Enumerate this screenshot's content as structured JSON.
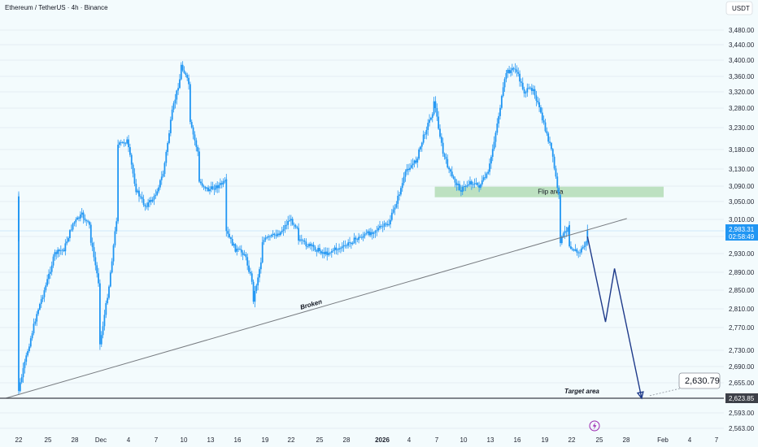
{
  "header": {
    "title": "Ethereum / TetherUS · 4h · Binance",
    "currency": "USDT"
  },
  "colors": {
    "background": "#f3fbfd",
    "candle": "#2196f3",
    "trendline": "#777b80",
    "support": "#3d4048",
    "projection": "#1e3a8a",
    "flip_zone": "#a5d6a7",
    "price_tag": "#2196f3",
    "support_tag": "#3d4048"
  },
  "chart_data": {
    "type": "candlestick",
    "title": "Ethereum / TetherUS · 4h · Binance",
    "ylim": [
      2563,
      3520
    ],
    "y_ticks": [
      2563,
      2593,
      2623.85,
      2655,
      2690,
      2730,
      2770,
      2810,
      2850,
      2890,
      2930,
      2970,
      3010,
      3050,
      3090,
      3130,
      3180,
      3230,
      3280,
      3320,
      3360,
      3400,
      3440,
      3480
    ],
    "y_tick_labels": [
      "2,563.00",
      "2,593.00",
      "2,623.85",
      "2,655.00",
      "2,690.00",
      "2,730.00",
      "2,770.00",
      "2,810.00",
      "2,850.00",
      "2,890.00",
      "2,930.00",
      "2,970.00",
      "3,010.00",
      "3,050.00",
      "3,090.00",
      "3,130.00",
      "3,180.00",
      "3,230.00",
      "3,280.00",
      "3,320.00",
      "3,360.00",
      "3,400.00",
      "3,440.00",
      "3,480.00"
    ],
    "x_ticks": [
      "22",
      "25",
      "28",
      "Dec",
      "4",
      "7",
      "10",
      "13",
      "16",
      "19",
      "22",
      "25",
      "28",
      "2026",
      "4",
      "7",
      "10",
      "13",
      "16",
      "19",
      "22",
      "25",
      "28",
      "Feb",
      "4",
      "7"
    ],
    "close_path": [
      [
        "Nov 22",
        2960
      ],
      [
        "Nov 22",
        3060
      ],
      [
        "Nov 22",
        2900
      ],
      [
        "Nov 22",
        2780
      ],
      [
        "Nov 22",
        2640
      ],
      [
        "Nov 23",
        2730
      ],
      [
        "Nov 24",
        2800
      ],
      [
        "Nov 25",
        2860
      ],
      [
        "Nov 26",
        2930
      ],
      [
        "Nov 27",
        2940
      ],
      [
        "Nov 28",
        3000
      ],
      [
        "Nov 29",
        3020
      ],
      [
        "Nov 30",
        2990
      ],
      [
        "Nov 30",
        2960
      ],
      [
        "Dec 1",
        2850
      ],
      [
        "Dec 1",
        2740
      ],
      [
        "Dec 2",
        2860
      ],
      [
        "Dec 3",
        3040
      ],
      [
        "Dec 3",
        3190
      ],
      [
        "Dec 4",
        3200
      ],
      [
        "Dec 5",
        3080
      ],
      [
        "Dec 6",
        3040
      ],
      [
        "Dec 7",
        3060
      ],
      [
        "Dec 8",
        3120
      ],
      [
        "Dec 9",
        3270
      ],
      [
        "Dec 10",
        3370
      ],
      [
        "Dec 10",
        3390
      ],
      [
        "Dec 11",
        3330
      ],
      [
        "Dec 11",
        3240
      ],
      [
        "Dec 12",
        3160
      ],
      [
        "Dec 12",
        3100
      ],
      [
        "Dec 13",
        3080
      ],
      [
        "Dec 14",
        3090
      ],
      [
        "Dec 15",
        3100
      ],
      [
        "Dec 15",
        2980
      ],
      [
        "Dec 16",
        2940
      ],
      [
        "Dec 17",
        2930
      ],
      [
        "Dec 18",
        2860
      ],
      [
        "Dec 18",
        2830
      ],
      [
        "Dec 19",
        2930
      ],
      [
        "Dec 19",
        2960
      ],
      [
        "Dec 20",
        2970
      ],
      [
        "Dec 21",
        2980
      ],
      [
        "Dec 22",
        3010
      ],
      [
        "Dec 23",
        2990
      ],
      [
        "Dec 23",
        2960
      ],
      [
        "Dec 24",
        2950
      ],
      [
        "Dec 25",
        2940
      ],
      [
        "Dec 26",
        2930
      ],
      [
        "Dec 27",
        2940
      ],
      [
        "Dec 28",
        2945
      ],
      [
        "Dec 29",
        2960
      ],
      [
        "Dec 30",
        2970
      ],
      [
        "Dec 31",
        2980
      ],
      [
        "Jan 1",
        2990
      ],
      [
        "Jan 2",
        3000
      ],
      [
        "Jan 3",
        3060
      ],
      [
        "Jan 4",
        3130
      ],
      [
        "Jan 5",
        3150
      ],
      [
        "Jan 6",
        3220
      ],
      [
        "Jan 7",
        3280
      ],
      [
        "Jan 7",
        3300
      ],
      [
        "Jan 8",
        3170
      ],
      [
        "Jan 9",
        3110
      ],
      [
        "Jan 10",
        3080
      ],
      [
        "Jan 11",
        3100
      ],
      [
        "Jan 12",
        3090
      ],
      [
        "Jan 13",
        3120
      ],
      [
        "Jan 14",
        3240
      ],
      [
        "Jan 15",
        3370
      ],
      [
        "Jan 16",
        3380
      ],
      [
        "Jan 17",
        3320
      ],
      [
        "Jan 18",
        3330
      ],
      [
        "Jan 19",
        3250
      ],
      [
        "Jan 20",
        3180
      ],
      [
        "Jan 21",
        3040
      ],
      [
        "Jan 21",
        2960
      ],
      [
        "Jan 22",
        3000
      ],
      [
        "Jan 22",
        2950
      ],
      [
        "Jan 23",
        2930
      ],
      [
        "Jan 24",
        2960
      ],
      [
        "Jan 24",
        2983.31
      ]
    ],
    "current_price": 2983.31,
    "current_price_label": "2,983.31",
    "countdown": "02:58:49",
    "support_level": 2623.85,
    "support_label": "2,623.85",
    "target_price_label": "2,630.79",
    "flip_area": {
      "label": "Flip area",
      "low": 3057,
      "high": 3078,
      "from": "Jan 7",
      "to": "Jan 31"
    },
    "trendline": {
      "label": "Broken",
      "points": [
        [
          "Nov 22",
          2623.85
        ],
        [
          "Jan 28",
          3012
        ]
      ]
    },
    "support_line": {
      "label": "Target area",
      "value": 2623.85
    },
    "projection": {
      "points": [
        [
          "Jan 24",
          2970
        ],
        [
          "Jan 26",
          2782
        ],
        [
          "Jan 27",
          2898
        ],
        [
          "Jan 30",
          2624
        ]
      ]
    }
  }
}
